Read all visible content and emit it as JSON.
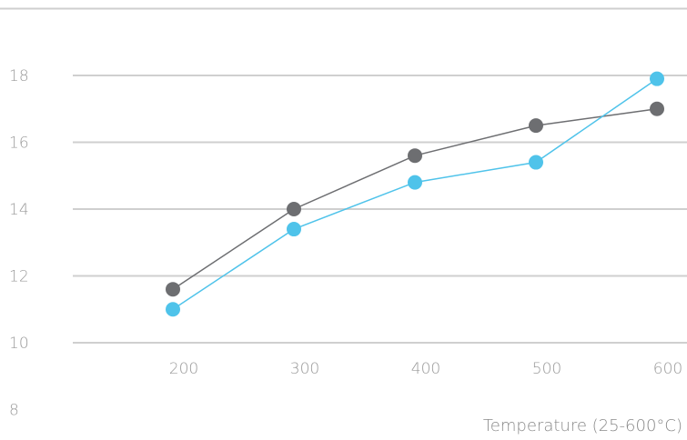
{
  "chart_data": {
    "type": "line",
    "title": "",
    "xlabel": "Temperature (25-600°C)",
    "ylabel": "",
    "x": [
      200,
      300,
      400,
      500,
      600
    ],
    "x_tick_labels": [
      "200",
      "300",
      "400",
      "500",
      "600"
    ],
    "y_tick_labels": [
      "8",
      "10",
      "12",
      "14",
      "16",
      "18"
    ],
    "y_ticks": [
      8,
      10,
      12,
      14,
      16,
      18
    ],
    "ylim": [
      8,
      20
    ],
    "grid": true,
    "legend": false,
    "series": [
      {
        "color": "#6d6e71",
        "values": [
          11.6,
          14.0,
          15.6,
          16.5,
          17.0
        ]
      },
      {
        "color": "#4fc3ea",
        "values": [
          11.0,
          13.4,
          14.8,
          15.4,
          17.9
        ]
      }
    ]
  },
  "colors": {
    "grid": "#cfcfcf",
    "tick_text": "#9a9a9a"
  }
}
